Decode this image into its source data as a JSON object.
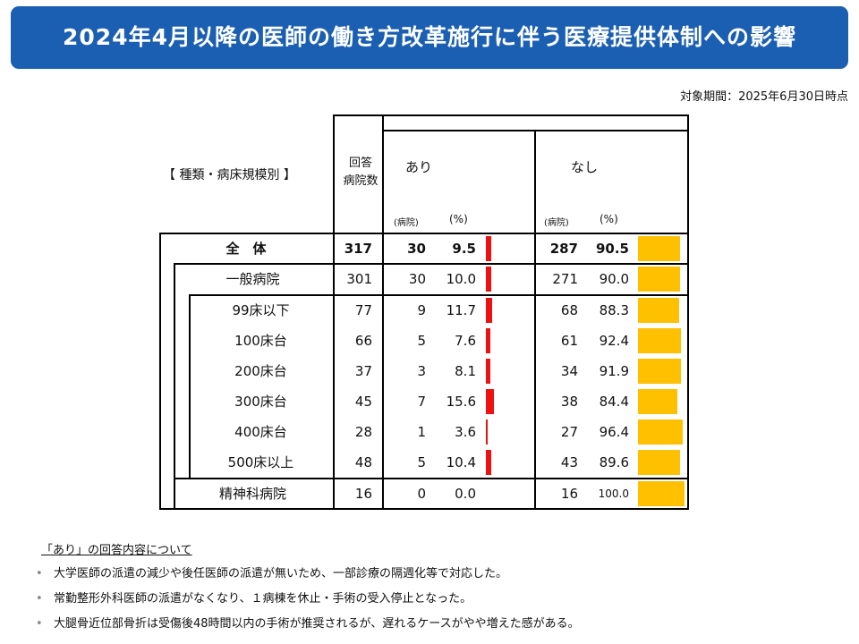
{
  "title": "2024年4月以降の医師の働き方改革施行に伴う医療提供体制への影響",
  "as_of": "対象期間：2025年6月30日時点",
  "table": {
    "category_header": "【 種類・病床規模別 】",
    "count_header_line1": "回答",
    "count_header_line2": "病院数",
    "yes_header": "あり",
    "no_header": "なし",
    "unit_hospitals": "(病院)",
    "unit_percent": "(%)",
    "rows": [
      {
        "label": "全　体",
        "total": "317",
        "yes_n": "30",
        "yes_pct": "9.5",
        "no_n": "287",
        "no_pct": "90.5",
        "yes_value": 9.5,
        "no_value": 90.5
      },
      {
        "label": "一般病院",
        "total": "301",
        "yes_n": "30",
        "yes_pct": "10.0",
        "no_n": "271",
        "no_pct": "90.0",
        "yes_value": 10.0,
        "no_value": 90.0
      },
      {
        "label": "99床以下",
        "total": "77",
        "yes_n": "9",
        "yes_pct": "11.7",
        "no_n": "68",
        "no_pct": "88.3",
        "yes_value": 11.7,
        "no_value": 88.3
      },
      {
        "label": "100床台",
        "total": "66",
        "yes_n": "5",
        "yes_pct": "7.6",
        "no_n": "61",
        "no_pct": "92.4",
        "yes_value": 7.6,
        "no_value": 92.4
      },
      {
        "label": "200床台",
        "total": "37",
        "yes_n": "3",
        "yes_pct": "8.1",
        "no_n": "34",
        "no_pct": "91.9",
        "yes_value": 8.1,
        "no_value": 91.9
      },
      {
        "label": "300床台",
        "total": "45",
        "yes_n": "7",
        "yes_pct": "15.6",
        "no_n": "38",
        "no_pct": "84.4",
        "yes_value": 15.6,
        "no_value": 84.4
      },
      {
        "label": "400床台",
        "total": "28",
        "yes_n": "1",
        "yes_pct": "3.6",
        "no_n": "27",
        "no_pct": "96.4",
        "yes_value": 3.6,
        "no_value": 96.4
      },
      {
        "label": "500床以上",
        "total": "48",
        "yes_n": "5",
        "yes_pct": "10.4",
        "no_n": "43",
        "no_pct": "89.6",
        "yes_value": 10.4,
        "no_value": 89.6
      },
      {
        "label": "精神科病院",
        "total": "16",
        "yes_n": "0",
        "yes_pct": "0.0",
        "no_n": "16",
        "no_pct": "100.0",
        "yes_value": 0.0,
        "no_value": 100.0
      }
    ]
  },
  "colors": {
    "banner": "#1b5fb2",
    "yes_bar": "#ee1111",
    "no_bar": "#ffc000"
  },
  "notes": {
    "title": "「あり」の回答内容について",
    "bullet": "•",
    "items": [
      "大学医師の派遣の減少や後任医師の派遣が無いため、一部診療の隔週化等で対応した。",
      "常勤整形外科医師の派遣がなくなり、１病棟を休止・手術の受入停止となった。",
      "大腿骨近位部骨折は受傷後48時間以内の手術が推奨されるが、遅れるケースがやや増えた感がある。"
    ]
  }
}
